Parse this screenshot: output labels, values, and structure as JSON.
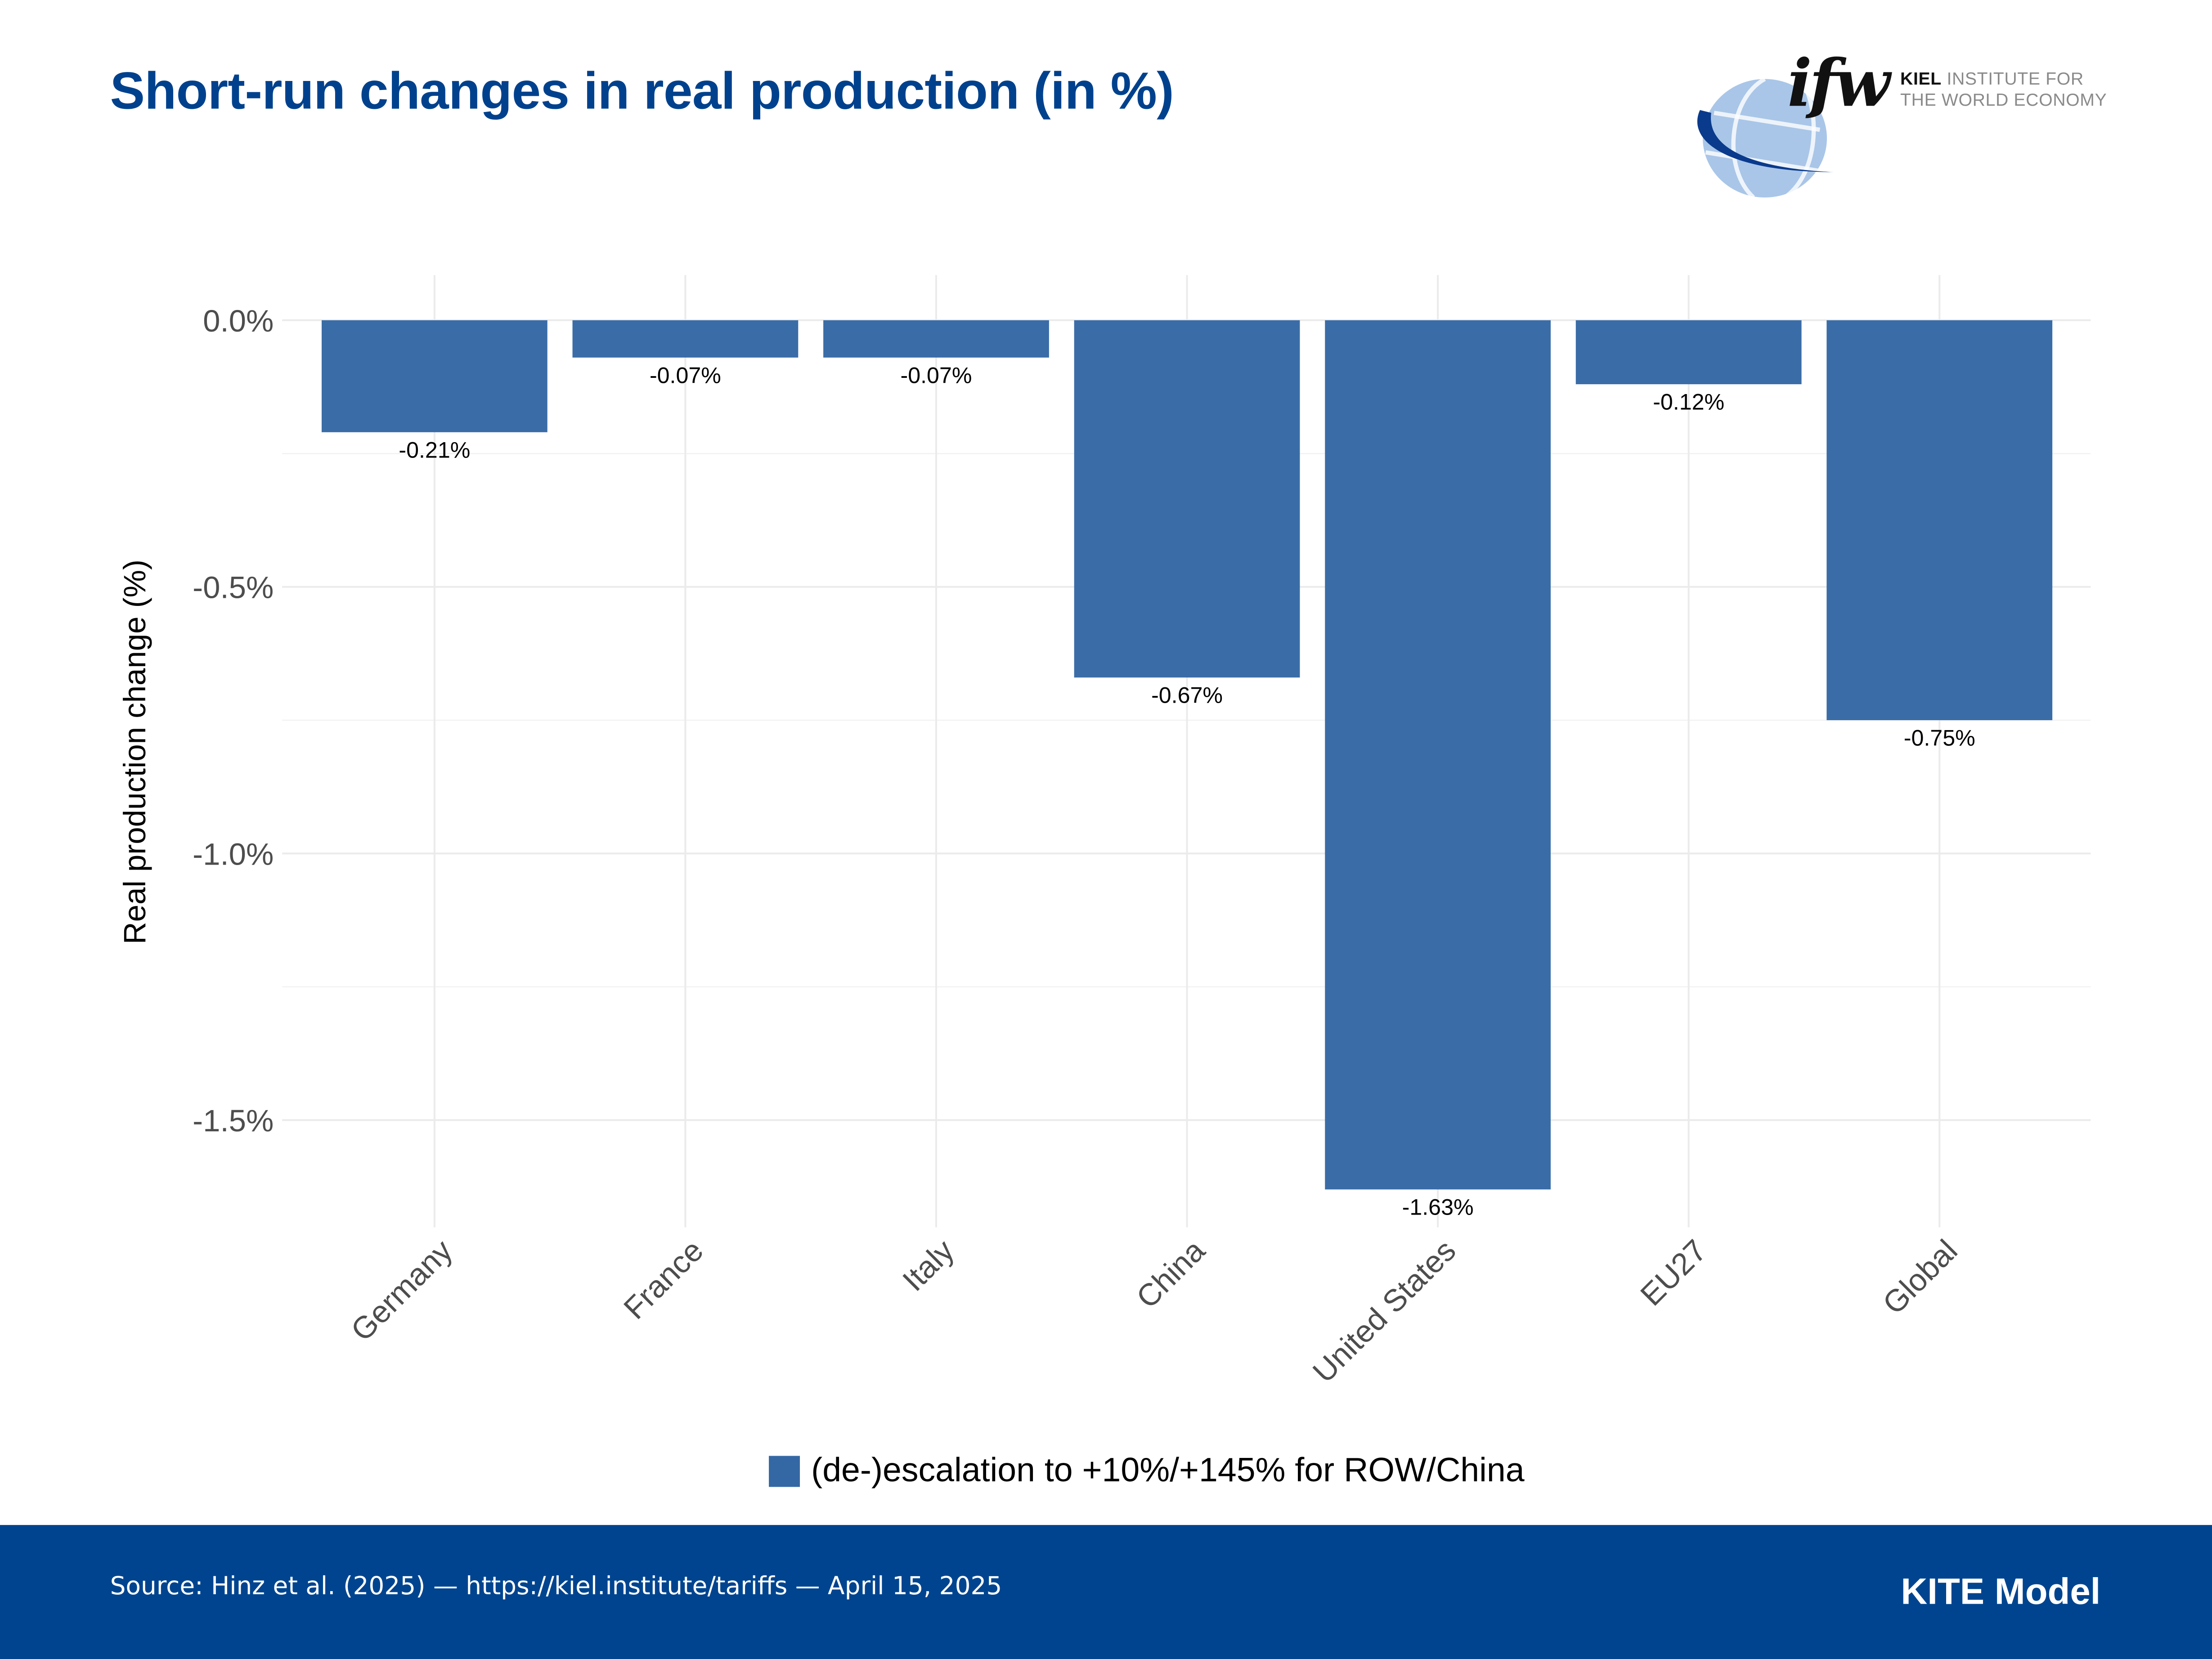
{
  "header": {
    "title": "Short-run changes in real production (in %)"
  },
  "logo": {
    "mark": "ifw",
    "line1_bold": "KIEL",
    "line1_rest": "INSTITUTE FOR",
    "line2": "THE WORLD ECONOMY"
  },
  "colors": {
    "title": "#00418d",
    "bar": "#3468a4",
    "footer": "#00448f",
    "grid": "#ebebeb"
  },
  "chart_data": {
    "type": "bar",
    "title": "Short-run changes in real production (in %)",
    "xlabel": "",
    "ylabel": "Real production change (%)",
    "categories": [
      "Germany",
      "France",
      "Italy",
      "China",
      "United States",
      "EU27",
      "Global"
    ],
    "series": [
      {
        "name": "(de-)escalation to +10%/+145% for ROW/China",
        "values": [
          -0.21,
          -0.07,
          -0.07,
          -0.67,
          -1.63,
          -0.12,
          -0.75
        ],
        "labels": [
          "-0.21%",
          "-0.07%",
          "-0.07%",
          "-0.67%",
          "-1.63%",
          "-0.12%",
          "-0.75%"
        ]
      }
    ],
    "yticks": [
      0.0,
      -0.5,
      -1.0,
      -1.5
    ],
    "ytick_labels": [
      "0.0%",
      "-0.5%",
      "-1.0%",
      "-1.5%"
    ],
    "ylim": [
      -1.7,
      0.08
    ],
    "grid": true,
    "legend_position": "bottom",
    "x_label_rotation_deg": 45
  },
  "legend": {
    "label": "(de-)escalation to +10%/+145% for ROW/China"
  },
  "footer": {
    "source": "Source: Hinz et al. (2025) — https://kiel.institute/tariffs — April 15, 2025",
    "model": "KITE Model"
  }
}
